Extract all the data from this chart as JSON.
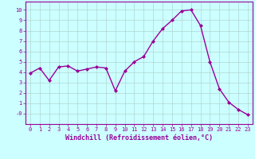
{
  "x": [
    0,
    1,
    2,
    3,
    4,
    5,
    6,
    7,
    8,
    9,
    10,
    11,
    12,
    13,
    14,
    15,
    16,
    17,
    18,
    19,
    20,
    21,
    22,
    23
  ],
  "y": [
    3.9,
    4.4,
    3.2,
    4.5,
    4.6,
    4.1,
    4.3,
    4.5,
    4.4,
    2.2,
    4.1,
    5.0,
    5.5,
    7.0,
    8.2,
    9.0,
    9.9,
    10.0,
    8.5,
    5.0,
    2.4,
    1.1,
    0.4,
    -0.1
  ],
  "line_color": "#990099",
  "marker": "D",
  "marker_size": 2,
  "line_width": 1.0,
  "bg_color": "#ccffff",
  "grid_color": "#aacccc",
  "xlabel": "Windchill (Refroidissement éolien,°C)",
  "xlim": [
    -0.5,
    23.5
  ],
  "ylim": [
    -1.0,
    10.8
  ],
  "xtick_labels": [
    "0",
    "1",
    "2",
    "3",
    "4",
    "5",
    "6",
    "7",
    "8",
    "9",
    "10",
    "11",
    "12",
    "13",
    "14",
    "15",
    "16",
    "17",
    "18",
    "19",
    "20",
    "21",
    "22",
    "23"
  ],
  "ytick_values": [
    0,
    1,
    2,
    3,
    4,
    5,
    6,
    7,
    8,
    9,
    10
  ],
  "ytick_labels": [
    "-0",
    "1",
    "2",
    "3",
    "4",
    "5",
    "6",
    "7",
    "8",
    "9",
    "10"
  ],
  "tick_color": "#990099",
  "label_color": "#990099",
  "tick_fontsize": 5.0,
  "xlabel_fontsize": 6.0
}
